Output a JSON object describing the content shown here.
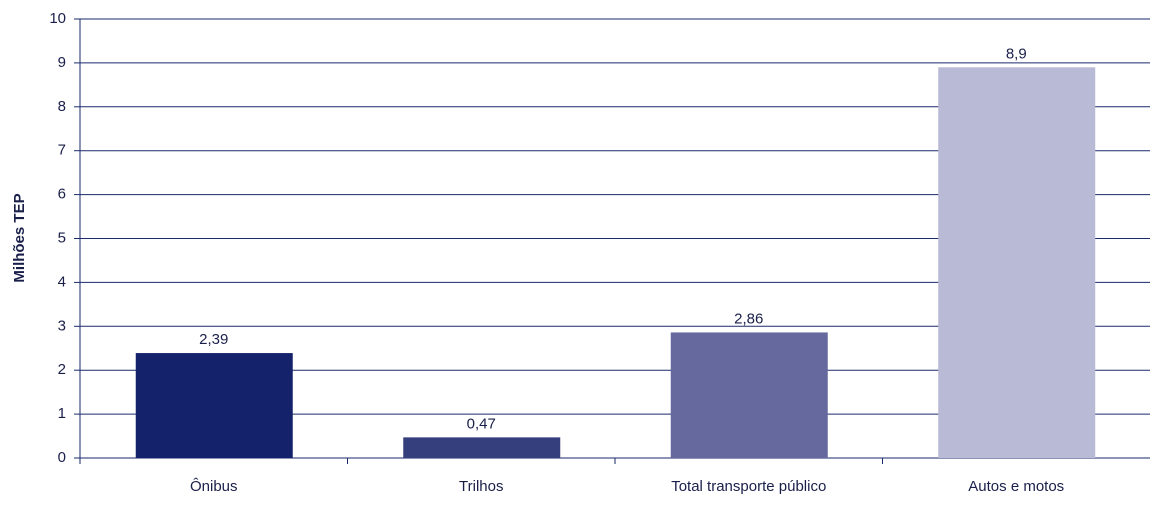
{
  "chart_data": {
    "type": "bar",
    "ylabel": "Milhões TEP",
    "categories": [
      "Ônibus",
      "Trilhos",
      "Total transporte público",
      "Autos e motos"
    ],
    "values": [
      2.39,
      0.47,
      2.86,
      8.9
    ],
    "value_labels": [
      "2,39",
      "0,47",
      "2,86",
      "8,9"
    ],
    "colors": [
      "#13226a",
      "#363f7e",
      "#66699d",
      "#b9bad6"
    ],
    "ylim": [
      0,
      10
    ],
    "yticks": [
      0,
      1,
      2,
      3,
      4,
      5,
      6,
      7,
      8,
      9,
      10
    ],
    "grid": true
  }
}
